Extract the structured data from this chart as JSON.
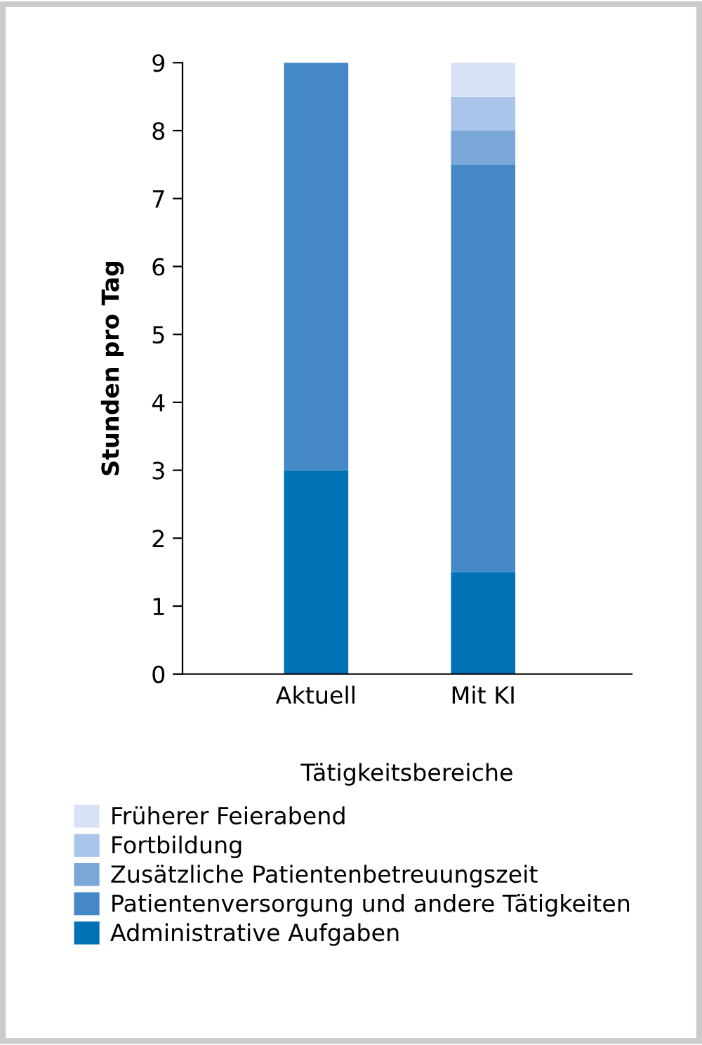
{
  "chart_data": {
    "type": "bar",
    "stacked": true,
    "xlabel": "Tätigkeitsbereiche",
    "ylabel": "Stunden pro Tag",
    "categories": [
      "Aktuell",
      "Mit KI"
    ],
    "series": [
      {
        "name": "Administrative Aufgaben",
        "color": "#0072b5",
        "values": [
          3,
          1.5
        ]
      },
      {
        "name": "Patientenversorgung und andere Tätigkeiten",
        "color": "#4489c5",
        "values": [
          6,
          6
        ]
      },
      {
        "name": "Zusätzliche Patientenbetreuungszeit",
        "color": "#7aa6d8",
        "values": [
          0,
          0.5
        ]
      },
      {
        "name": "Fortbildung",
        "color": "#abc5ea",
        "values": [
          0,
          0.5
        ]
      },
      {
        "name": "Früherer Feierabend",
        "color": "#d6e2f5",
        "values": [
          0,
          0.5
        ]
      }
    ],
    "ylim": [
      0,
      9
    ],
    "yticks": [
      0,
      1,
      2,
      3,
      4,
      5,
      6,
      7,
      8,
      9
    ],
    "grid": false,
    "legend": "bottom"
  }
}
